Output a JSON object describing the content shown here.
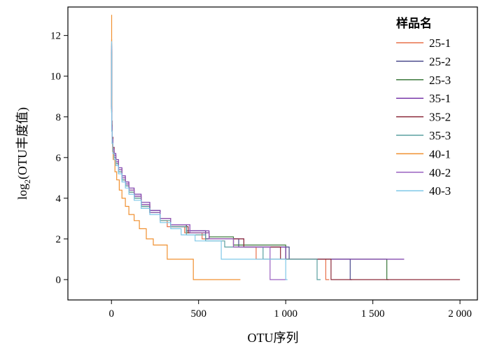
{
  "chart_data": {
    "type": "line",
    "xlabel": "OTU序列",
    "ylabel_main": "log",
    "ylabel_sub": "2",
    "ylabel_rest": "(OTU丰度值)",
    "xlim": [
      -250,
      2100
    ],
    "ylim": [
      -1,
      13.4
    ],
    "x_ticks": [
      0,
      500,
      1000,
      1500,
      2000
    ],
    "x_tick_labels": [
      "0",
      "500",
      "1 000",
      "1 500",
      "2 000"
    ],
    "y_ticks": [
      0,
      2,
      4,
      6,
      8,
      10,
      12
    ],
    "y_tick_labels": [
      "0",
      "2",
      "4",
      "6",
      "8",
      "10",
      "12"
    ],
    "grid": false,
    "legend_title": "样品名",
    "legend_position": "top-right",
    "series": [
      {
        "name": "25-1",
        "color": "#e8704a",
        "points": [
          [
            0,
            11.8
          ],
          [
            1,
            8.5
          ],
          [
            2,
            7.5
          ],
          [
            4,
            6.8
          ],
          [
            8,
            6.3
          ],
          [
            15,
            6.0
          ],
          [
            25,
            5.7
          ],
          [
            40,
            5.3
          ],
          [
            60,
            4.9
          ],
          [
            80,
            4.6
          ],
          [
            100,
            4.3
          ],
          [
            130,
            4.0
          ],
          [
            170,
            3.6
          ],
          [
            220,
            3.3
          ],
          [
            280,
            2.9
          ],
          [
            320,
            2.6
          ],
          [
            420,
            2.3
          ],
          [
            520,
            2.0
          ],
          [
            700,
            1.6
          ],
          [
            830,
            1.6
          ],
          [
            830,
            1.0
          ],
          [
            1230,
            1.0
          ],
          [
            1230,
            0
          ],
          [
            1250,
            0
          ]
        ]
      },
      {
        "name": "25-2",
        "color": "#4a4a8c",
        "points": [
          [
            0,
            11.5
          ],
          [
            1,
            8.4
          ],
          [
            2,
            7.4
          ],
          [
            4,
            6.9
          ],
          [
            8,
            6.4
          ],
          [
            15,
            6.1
          ],
          [
            25,
            5.8
          ],
          [
            40,
            5.4
          ],
          [
            60,
            5.0
          ],
          [
            80,
            4.7
          ],
          [
            100,
            4.4
          ],
          [
            130,
            4.1
          ],
          [
            170,
            3.7
          ],
          [
            220,
            3.4
          ],
          [
            280,
            3.0
          ],
          [
            340,
            2.7
          ],
          [
            430,
            2.4
          ],
          [
            540,
            2.0
          ],
          [
            730,
            1.6
          ],
          [
            1020,
            1.6
          ],
          [
            1020,
            1.0
          ],
          [
            1370,
            1.0
          ],
          [
            1370,
            0
          ],
          [
            1380,
            0
          ]
        ]
      },
      {
        "name": "25-3",
        "color": "#3d7a3d",
        "points": [
          [
            0,
            11.2
          ],
          [
            1,
            8.3
          ],
          [
            2,
            7.4
          ],
          [
            4,
            6.7
          ],
          [
            8,
            6.3
          ],
          [
            15,
            6.0
          ],
          [
            25,
            5.7
          ],
          [
            40,
            5.3
          ],
          [
            60,
            4.9
          ],
          [
            80,
            4.6
          ],
          [
            100,
            4.3
          ],
          [
            130,
            4.0
          ],
          [
            170,
            3.6
          ],
          [
            220,
            3.3
          ],
          [
            280,
            3.0
          ],
          [
            340,
            2.7
          ],
          [
            430,
            2.3
          ],
          [
            560,
            2.1
          ],
          [
            700,
            1.7
          ],
          [
            1000,
            1.7
          ],
          [
            1000,
            1.0
          ],
          [
            1580,
            1.0
          ],
          [
            1580,
            0
          ],
          [
            1590,
            0
          ]
        ]
      },
      {
        "name": "35-1",
        "color": "#7a3aaa",
        "points": [
          [
            0,
            11.6
          ],
          [
            1,
            8.5
          ],
          [
            2,
            7.6
          ],
          [
            4,
            7.0
          ],
          [
            8,
            6.5
          ],
          [
            15,
            6.2
          ],
          [
            25,
            5.9
          ],
          [
            40,
            5.5
          ],
          [
            60,
            5.1
          ],
          [
            80,
            4.8
          ],
          [
            100,
            4.5
          ],
          [
            130,
            4.2
          ],
          [
            170,
            3.8
          ],
          [
            220,
            3.4
          ],
          [
            280,
            3.0
          ],
          [
            340,
            2.7
          ],
          [
            450,
            2.4
          ],
          [
            560,
            2.0
          ],
          [
            760,
            1.6
          ],
          [
            1000,
            1.6
          ],
          [
            1000,
            1.0
          ],
          [
            1680,
            1.0
          ]
        ]
      },
      {
        "name": "35-2",
        "color": "#8c2a3a",
        "points": [
          [
            0,
            11.3
          ],
          [
            1,
            8.4
          ],
          [
            2,
            7.8
          ],
          [
            4,
            7.0
          ],
          [
            8,
            6.5
          ],
          [
            15,
            6.1
          ],
          [
            25,
            5.8
          ],
          [
            40,
            5.4
          ],
          [
            60,
            5.0
          ],
          [
            80,
            4.7
          ],
          [
            100,
            4.4
          ],
          [
            130,
            4.1
          ],
          [
            170,
            3.7
          ],
          [
            220,
            3.3
          ],
          [
            280,
            3.0
          ],
          [
            340,
            2.6
          ],
          [
            440,
            2.3
          ],
          [
            560,
            2.0
          ],
          [
            760,
            1.6
          ],
          [
            970,
            1.6
          ],
          [
            970,
            1.0
          ],
          [
            1260,
            1.0
          ],
          [
            1260,
            0
          ],
          [
            2000,
            0
          ]
        ]
      },
      {
        "name": "35-3",
        "color": "#5aa0a0",
        "points": [
          [
            0,
            11.1
          ],
          [
            1,
            8.2
          ],
          [
            2,
            7.3
          ],
          [
            4,
            6.8
          ],
          [
            8,
            6.3
          ],
          [
            15,
            6.0
          ],
          [
            25,
            5.7
          ],
          [
            40,
            5.3
          ],
          [
            60,
            4.9
          ],
          [
            80,
            4.6
          ],
          [
            100,
            4.3
          ],
          [
            130,
            4.0
          ],
          [
            170,
            3.6
          ],
          [
            220,
            3.3
          ],
          [
            280,
            2.9
          ],
          [
            340,
            2.6
          ],
          [
            430,
            2.2
          ],
          [
            540,
            1.9
          ],
          [
            650,
            1.6
          ],
          [
            870,
            1.6
          ],
          [
            870,
            1.0
          ],
          [
            1180,
            1.0
          ],
          [
            1180,
            0
          ],
          [
            1200,
            0
          ]
        ]
      },
      {
        "name": "40-1",
        "color": "#f09030",
        "points": [
          [
            0,
            13.0
          ],
          [
            1,
            9.0
          ],
          [
            2,
            7.4
          ],
          [
            4,
            6.8
          ],
          [
            6,
            6.3
          ],
          [
            10,
            5.9
          ],
          [
            20,
            5.3
          ],
          [
            30,
            4.9
          ],
          [
            45,
            4.4
          ],
          [
            60,
            4.0
          ],
          [
            80,
            3.6
          ],
          [
            100,
            3.2
          ],
          [
            130,
            2.9
          ],
          [
            160,
            2.5
          ],
          [
            200,
            2.0
          ],
          [
            240,
            1.7
          ],
          [
            320,
            1.0
          ],
          [
            470,
            1.0
          ],
          [
            470,
            0
          ],
          [
            740,
            0
          ]
        ]
      },
      {
        "name": "40-2",
        "color": "#9a60c0",
        "points": [
          [
            0,
            11.4
          ],
          [
            1,
            8.5
          ],
          [
            2,
            7.5
          ],
          [
            4,
            6.9
          ],
          [
            8,
            6.4
          ],
          [
            15,
            6.1
          ],
          [
            25,
            5.8
          ],
          [
            40,
            5.4
          ],
          [
            60,
            5.0
          ],
          [
            80,
            4.7
          ],
          [
            100,
            4.4
          ],
          [
            130,
            4.1
          ],
          [
            170,
            3.7
          ],
          [
            220,
            3.3
          ],
          [
            280,
            3.0
          ],
          [
            340,
            2.7
          ],
          [
            450,
            2.3
          ],
          [
            560,
            2.0
          ],
          [
            700,
            1.6
          ],
          [
            910,
            1.6
          ],
          [
            910,
            0
          ],
          [
            1000,
            0
          ]
        ]
      },
      {
        "name": "40-3",
        "color": "#7fc8e8",
        "points": [
          [
            0,
            11.7
          ],
          [
            1,
            8.2
          ],
          [
            2,
            7.3
          ],
          [
            4,
            6.7
          ],
          [
            8,
            6.2
          ],
          [
            15,
            5.9
          ],
          [
            25,
            5.6
          ],
          [
            40,
            5.2
          ],
          [
            60,
            4.8
          ],
          [
            80,
            4.5
          ],
          [
            100,
            4.2
          ],
          [
            130,
            3.9
          ],
          [
            170,
            3.5
          ],
          [
            220,
            3.2
          ],
          [
            280,
            2.8
          ],
          [
            340,
            2.5
          ],
          [
            400,
            2.2
          ],
          [
            480,
            1.9
          ],
          [
            630,
            1.6
          ],
          [
            630,
            1.0
          ],
          [
            1000,
            1.0
          ],
          [
            1000,
            0
          ],
          [
            1010,
            0
          ]
        ]
      }
    ]
  }
}
